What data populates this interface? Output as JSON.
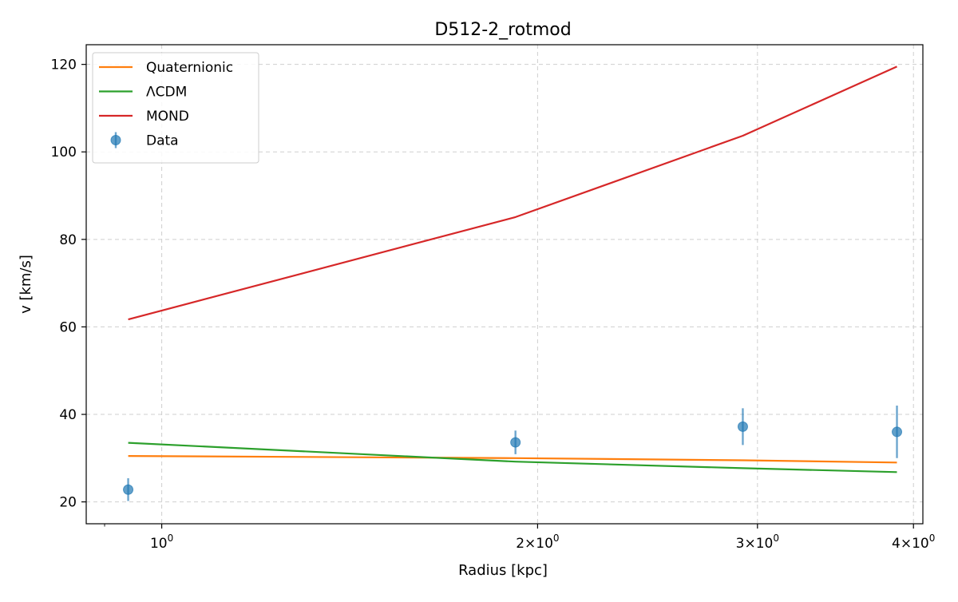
{
  "chart_data": {
    "type": "line",
    "title": "D512-2_rotmod",
    "xlabel": "Radius [kpc]",
    "ylabel": "v [km/s]",
    "xscale": "log",
    "xlim": [
      0.87,
      4.07
    ],
    "ylim": [
      15,
      124.5
    ],
    "grid": true,
    "legend_position": "top-left",
    "x_ticks": [
      {
        "value": 1,
        "mantissa": "",
        "base": "10",
        "exp": "0"
      },
      {
        "value": 2,
        "mantissa": "2×",
        "base": "10",
        "exp": "0"
      },
      {
        "value": 3,
        "mantissa": "3×",
        "base": "10",
        "exp": "0"
      },
      {
        "value": 4,
        "mantissa": "4×",
        "base": "10",
        "exp": "0"
      }
    ],
    "x_minor_ticks": [
      0.9
    ],
    "y_ticks": [
      20,
      40,
      60,
      80,
      100,
      120
    ],
    "x": [
      0.94,
      1.92,
      2.92,
      3.88
    ],
    "series": [
      {
        "name": "Quaternionic",
        "color": "#ff7f0e",
        "kind": "line",
        "values": [
          30.5,
          30.0,
          29.5,
          29.0
        ]
      },
      {
        "name": "ΛCDM",
        "color": "#2ca02c",
        "kind": "line",
        "values": [
          33.5,
          29.2,
          27.7,
          26.8
        ]
      },
      {
        "name": "MOND",
        "color": "#d62728",
        "kind": "line",
        "values": [
          61.7,
          85.1,
          103.7,
          119.5
        ]
      },
      {
        "name": "Data",
        "color": "#1f77b4",
        "kind": "errorbar",
        "values": [
          22.8,
          33.6,
          37.2,
          36.0
        ],
        "errors": [
          2.6,
          2.7,
          4.2,
          6.0
        ]
      }
    ]
  }
}
